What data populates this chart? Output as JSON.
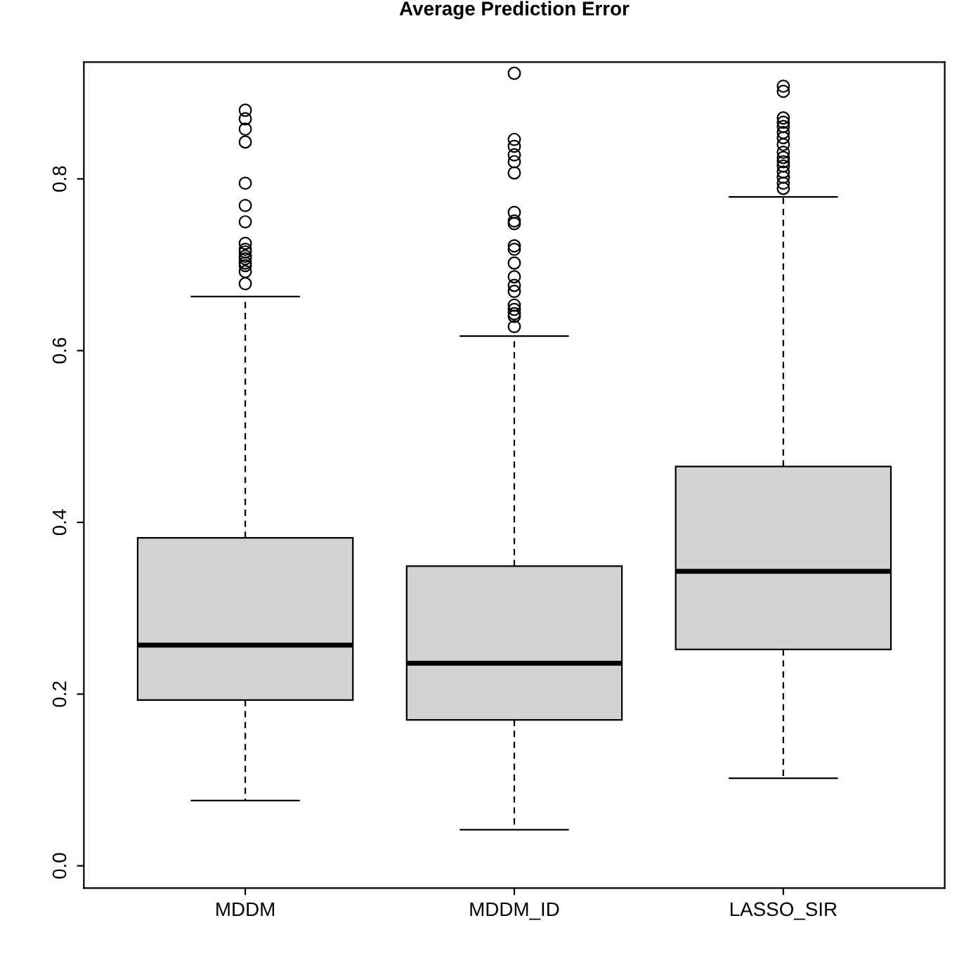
{
  "chart_data": {
    "type": "box",
    "title": "Average Prediction Error",
    "categories": [
      "MDDM",
      "MDDM_ID",
      "LASSO_SIR"
    ],
    "color": "#d3d3d3",
    "boxes": [
      {
        "low": 0.076,
        "q1": 0.193,
        "median": 0.257,
        "q3": 0.382,
        "high": 0.663,
        "outliers": [
          0.88,
          0.87,
          0.858,
          0.843,
          0.795,
          0.769,
          0.75,
          0.725,
          0.718,
          0.715,
          0.71,
          0.707,
          0.702,
          0.699,
          0.692,
          0.678
        ]
      },
      {
        "low": 0.042,
        "q1": 0.17,
        "median": 0.236,
        "q3": 0.349,
        "high": 0.617,
        "outliers": [
          0.923,
          0.846,
          0.838,
          0.828,
          0.82,
          0.807,
          0.761,
          0.751,
          0.748,
          0.722,
          0.718,
          0.702,
          0.686,
          0.676,
          0.669,
          0.653,
          0.648,
          0.643,
          0.64,
          0.628
        ]
      },
      {
        "low": 0.102,
        "q1": 0.252,
        "median": 0.343,
        "q3": 0.465,
        "high": 0.779,
        "outliers": [
          0.908,
          0.902,
          0.871,
          0.866,
          0.861,
          0.854,
          0.848,
          0.84,
          0.831,
          0.825,
          0.82,
          0.815,
          0.808,
          0.802,
          0.795,
          0.789
        ]
      }
    ],
    "ylim": [
      -0.026,
      0.936
    ],
    "yticks": [
      {
        "value": 0,
        "label": "0.0"
      },
      0.2,
      0.4,
      0.6,
      0.8
    ],
    "grid": false
  }
}
